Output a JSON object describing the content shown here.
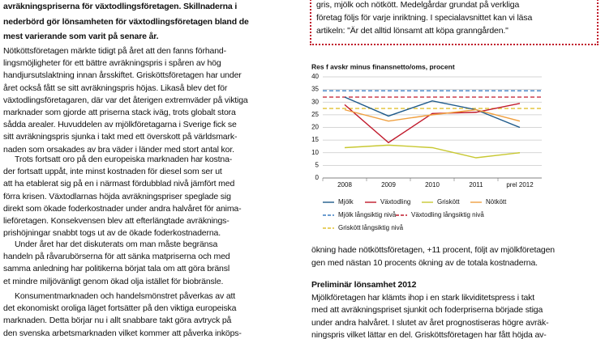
{
  "left_column": {
    "lead": [
      "avräkningspriserna för växtodlingsföretagen. Skillnaderna i",
      "nederbörd gör lönsamheten för växtodlingsföretagen bland de",
      "mest varierande som varit på senare år."
    ],
    "paragraphs": [
      [
        "Nötköttsföretagen märkte tidigt på året att den fanns förhand-",
        "lingsmöjligheter för ett bättre avräkningspris i spåren av hög",
        "handjursutslaktning innan årsskiftet. Grisköttsföretagen har under",
        "året också fått se sitt avräkningspris höjas. Likaså blev det för",
        "växtodlingsföretagaren, där var det återigen extremväder på viktiga",
        "marknader som gjorde att priserna stack iväg, trots globalt stora",
        "sådda arealer. Huvuddelen av mjölkföretagarna i Sverige fick se",
        "sitt avräkningspris sjunka i takt med ett överskott på världsmark-",
        "naden som orsakades av bra väder i länder med stort antal kor."
      ],
      [
        "Trots fortsatt oro på den europeiska marknaden har kostna-",
        "der fortsatt uppåt, inte minst kostnaden för diesel som ser ut",
        "att ha etablerat sig på en i närmast fördubblad nivå jämfört med",
        "förra krisen. Växtodlarnas höjda avräkningspriser speglade sig",
        "direkt som ökade foderkostnader under andra halvåret för anima-",
        "lieföretagen. Konsekvensen blev att efterlängtade avräknings-",
        "prishöjningar snabbt togs ut av de ökade foderkostnaderna."
      ],
      [
        "Under året har det diskuterats om man måste begränsa",
        "handeln på råvarubörserna för att sänka matpriserna och med",
        "samma anledning har politikerna börjat tala om att göra bränsl",
        "et mindre miljövänligt genom ökad olja istället för biobränsle."
      ],
      [
        "Konsumentmarknaden och handelsmönstret påverkas av att",
        "det ekonomiskt oroliga läget fortsätter på den viktiga europeiska",
        "marknaden. Detta börjar nu i allt snabbare takt göra avtryck på",
        "den svenska arbetsmarknaden vilket kommer att påverka inköps-"
      ]
    ]
  },
  "info_box": {
    "lines": [
      "gris, mjölk och nötkött. Medelgårdar grundat på verkliga",
      "företag följs för varje inriktning. I specialavsnittet kan vi läsa",
      "artikeln: \"Är det alltid lönsamt att köpa granngården.\""
    ]
  },
  "chart_data": {
    "type": "line",
    "title": "Res f avskr minus finansnetto/oms, procent",
    "categories": [
      "2008",
      "2009",
      "2010",
      "2011",
      "prel 2012"
    ],
    "series": [
      {
        "name": "Mjölk",
        "color": "#1f5a8a",
        "values": [
          32,
          24.5,
          30.5,
          27,
          20
        ]
      },
      {
        "name": "Växtodling",
        "color": "#c0182a",
        "values": [
          29,
          14,
          25.5,
          26,
          29.5
        ]
      },
      {
        "name": "Griskött",
        "color": "#c8c832",
        "values": [
          12,
          13,
          12,
          8,
          10
        ]
      },
      {
        "name": "Nötkött",
        "color": "#f0a040",
        "values": [
          27,
          22.5,
          25,
          27,
          22.5
        ]
      }
    ],
    "reference_lines": [
      {
        "name": "Mjölk långsiktig nivå",
        "color": "#3a7cc0",
        "value": 34.5
      },
      {
        "name": "Växtodling långsiktig nivå",
        "color": "#c0182a",
        "value": 32
      },
      {
        "name": "Griskött långsiktig nivå",
        "color": "#e0c030",
        "value": 27.5
      }
    ],
    "ylim": [
      0,
      40
    ],
    "yticks": [
      0,
      5,
      10,
      15,
      20,
      25,
      30,
      35,
      40
    ],
    "grid": true
  },
  "right_column": {
    "paragraph": [
      "ökning hade nötköttsföretagen, +11 procent, följt av mjölkföretagen",
      "gen med nästan 10 procents ökning av de totala kostnaderna."
    ],
    "heading": "Preliminär lönsamhet 2012",
    "paragraph2": [
      "Mjölkföretagen har klämts ihop i en stark likviditetspress i takt",
      "med att avräkningspriset sjunkit och foderpriserna började stiga",
      "under andra halvåret. I slutet av året prognostiseras högre avräk-",
      "ningspris vilket lättar en del. Grisköttsföretagen har fått höjda av-"
    ]
  }
}
